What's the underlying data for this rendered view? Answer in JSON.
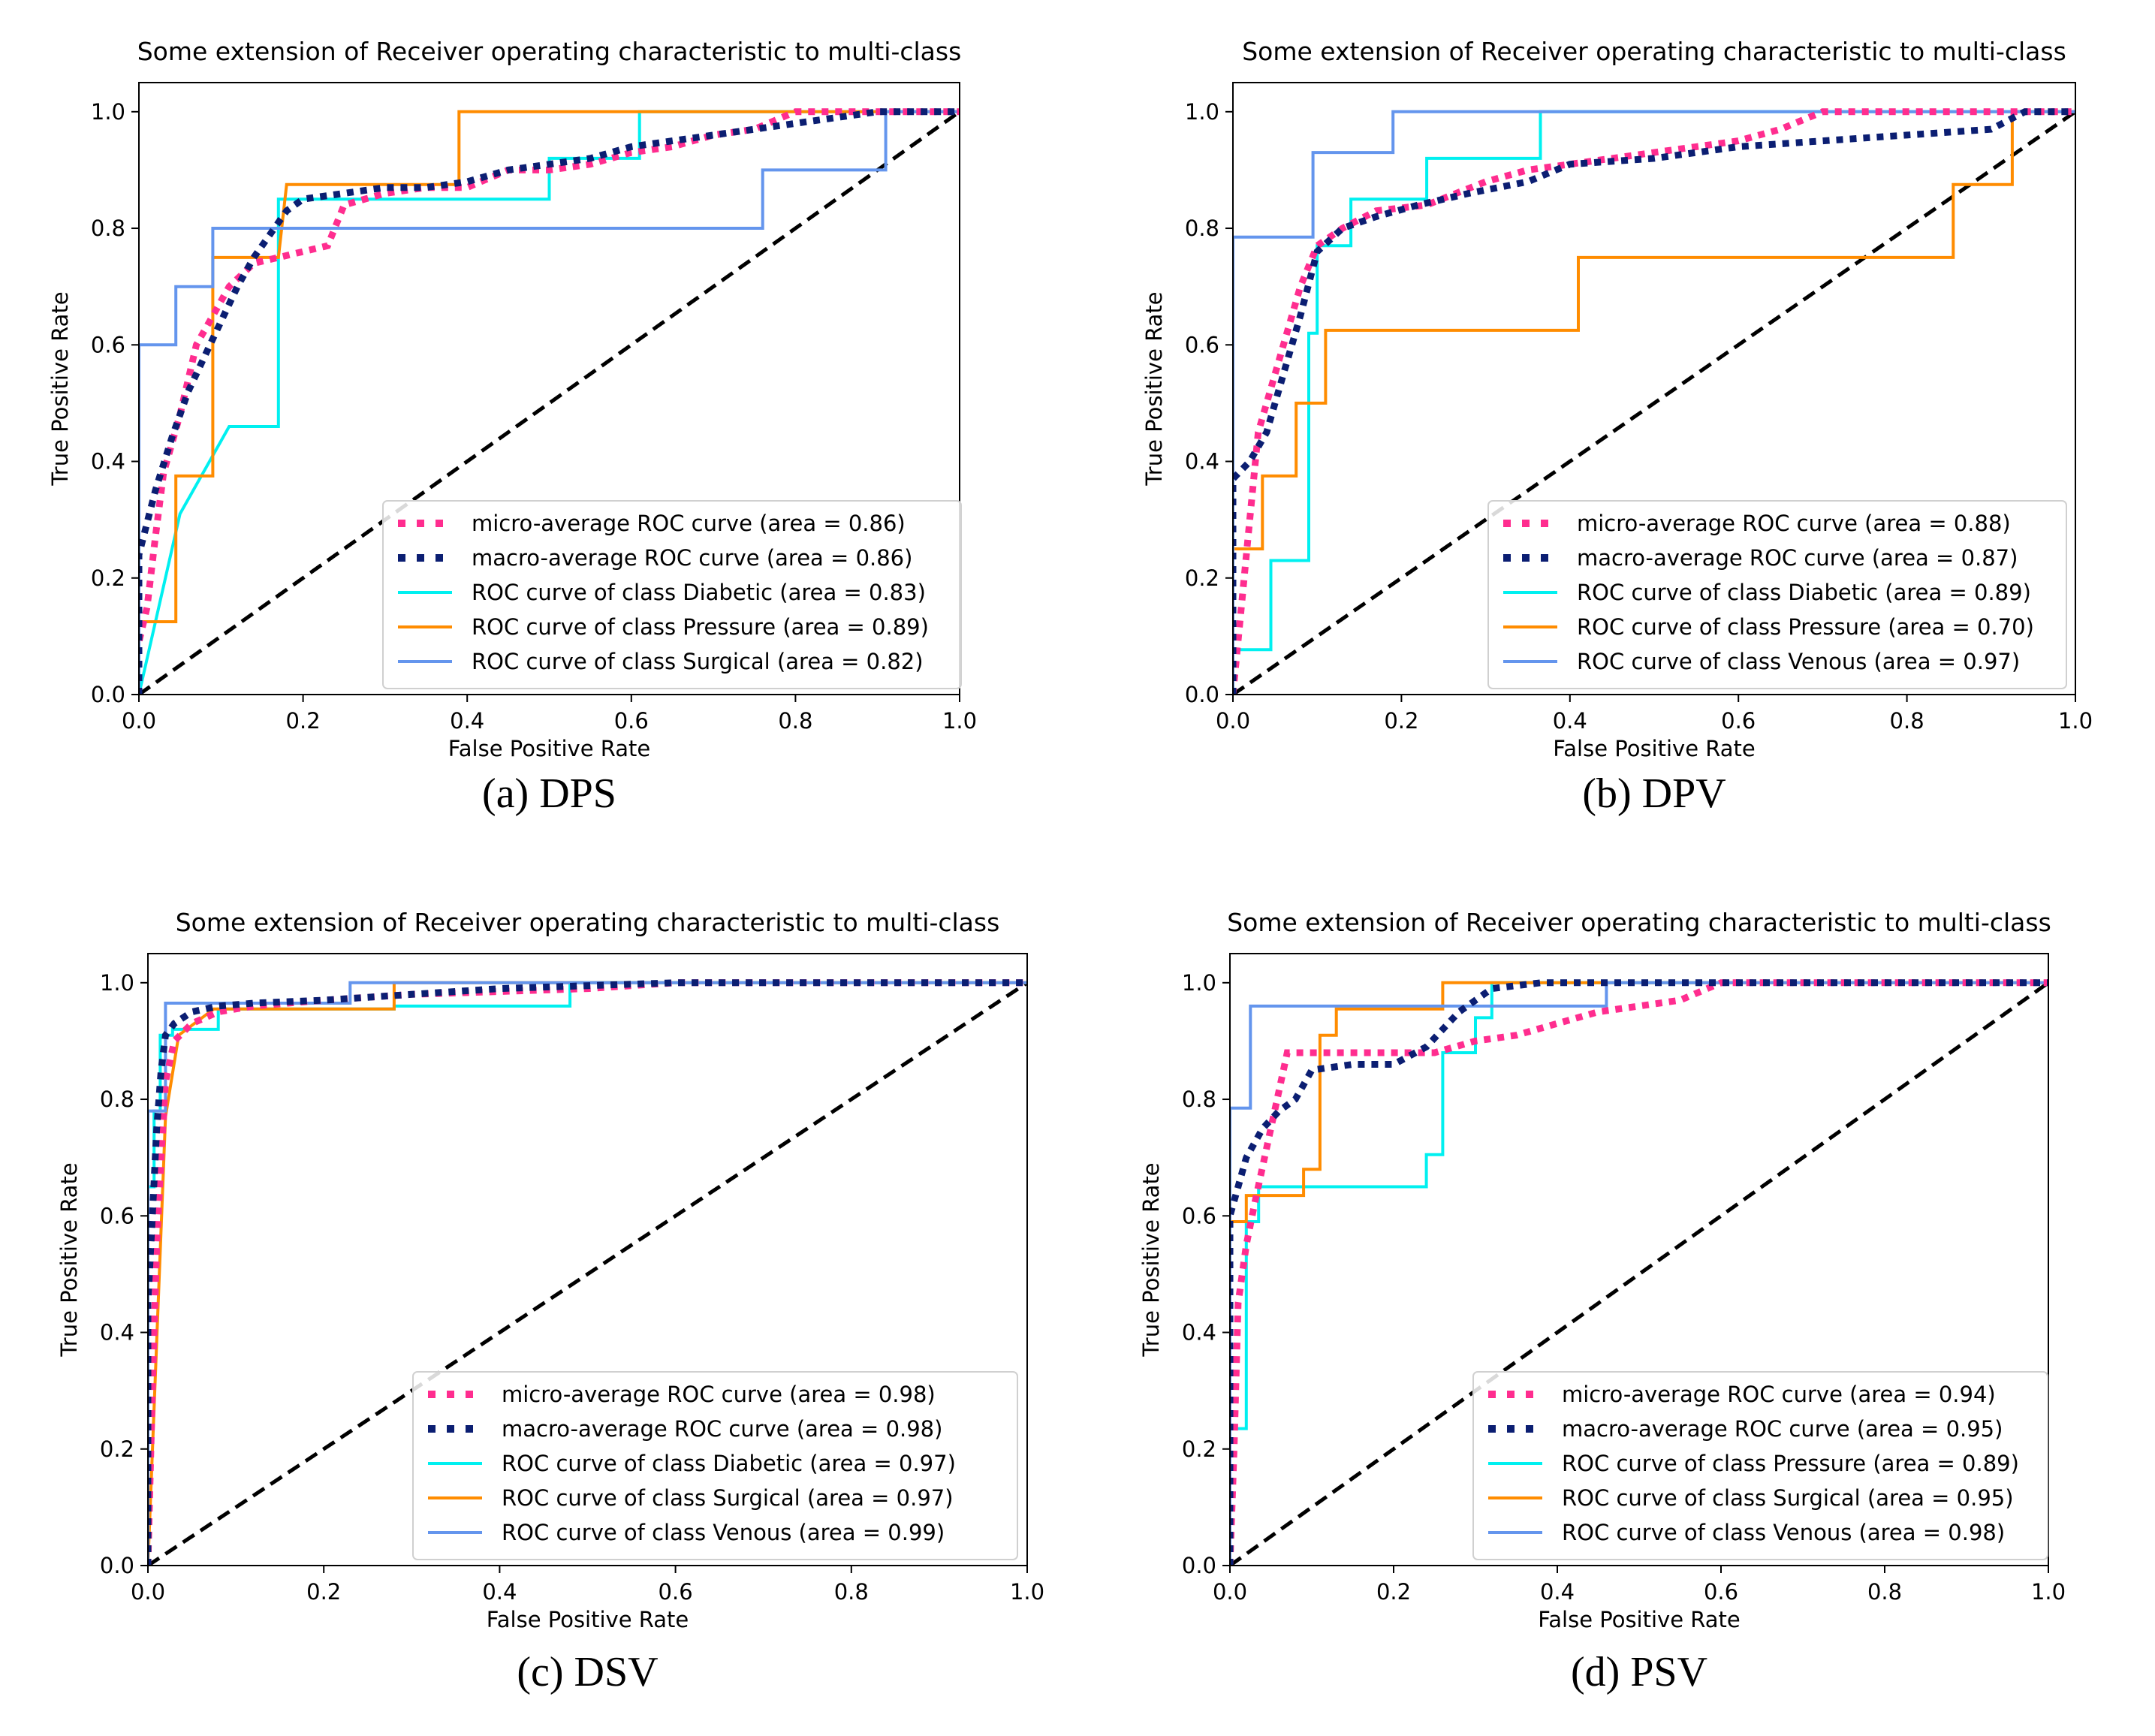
{
  "chart_data": [
    {
      "type": "line",
      "caption": "(a) DPS",
      "title": "Some extension of Receiver operating characteristic to multi-class",
      "xlabel": "False Positive Rate",
      "ylabel": "True Positive Rate",
      "xlim": [
        0,
        1
      ],
      "ylim": [
        0,
        1.05
      ],
      "xticks": [
        "0.0",
        "0.2",
        "0.4",
        "0.6",
        "0.8",
        "1.0"
      ],
      "yticks": [
        "0.0",
        "0.2",
        "0.4",
        "0.6",
        "0.8",
        "1.0"
      ],
      "legend_position": "lower-right",
      "series": [
        {
          "name": "micro-average ROC curve (area = 0.86)",
          "color": "#ff2d8f",
          "style": "dotted",
          "x": [
            0,
            0,
            0.01,
            0.02,
            0.03,
            0.05,
            0.07,
            0.09,
            0.11,
            0.14,
            0.17,
            0.2,
            0.23,
            0.25,
            0.3,
            0.35,
            0.4,
            0.45,
            0.5,
            0.55,
            0.6,
            0.65,
            0.7,
            0.75,
            0.8,
            0.9,
            1.0
          ],
          "y": [
            0,
            0.09,
            0.15,
            0.27,
            0.38,
            0.48,
            0.6,
            0.65,
            0.7,
            0.74,
            0.75,
            0.76,
            0.77,
            0.84,
            0.86,
            0.87,
            0.87,
            0.9,
            0.9,
            0.91,
            0.93,
            0.94,
            0.96,
            0.97,
            1.0,
            1.0,
            1.0
          ]
        },
        {
          "name": "macro-average ROC curve (area = 0.86)",
          "color": "#0b1e72",
          "style": "dotted",
          "x": [
            0,
            0,
            0.02,
            0.04,
            0.06,
            0.08,
            0.1,
            0.12,
            0.14,
            0.16,
            0.18,
            0.2,
            0.25,
            0.3,
            0.35,
            0.4,
            0.45,
            0.5,
            0.55,
            0.6,
            0.65,
            0.7,
            0.75,
            0.8,
            0.85,
            0.9,
            0.95,
            1.0
          ],
          "y": [
            0,
            0.24,
            0.35,
            0.44,
            0.52,
            0.58,
            0.64,
            0.7,
            0.75,
            0.79,
            0.83,
            0.85,
            0.86,
            0.87,
            0.87,
            0.88,
            0.9,
            0.91,
            0.92,
            0.94,
            0.95,
            0.96,
            0.97,
            0.98,
            0.99,
            1.0,
            1.0,
            1.0
          ]
        },
        {
          "name": "ROC curve of class Diabetic (area = 0.83)",
          "color": "#00f0f0",
          "style": "solid",
          "x": [
            0,
            0.05,
            0.11,
            0.17,
            0.17,
            0.5,
            0.5,
            0.61,
            0.61,
            1.0
          ],
          "y": [
            0,
            0.31,
            0.46,
            0.46,
            0.85,
            0.85,
            0.92,
            0.92,
            1.0,
            1.0
          ]
        },
        {
          "name": "ROC curve of class Pressure (area = 0.89)",
          "color": "#ff8c00",
          "style": "solid",
          "x": [
            0,
            0,
            0.045,
            0.045,
            0.09,
            0.09,
            0.09,
            0.17,
            0.18,
            0.39,
            0.39,
            1.0
          ],
          "y": [
            0,
            0.125,
            0.125,
            0.375,
            0.375,
            0.75,
            0.75,
            0.75,
            0.875,
            0.875,
            1.0,
            1.0
          ]
        },
        {
          "name": "ROC curve of class Surgical (area = 0.82)",
          "color": "#6495ed",
          "style": "solid",
          "x": [
            0,
            0,
            0.045,
            0.045,
            0.09,
            0.09,
            0.76,
            0.76,
            0.91,
            0.91,
            1.0
          ],
          "y": [
            0,
            0.6,
            0.6,
            0.7,
            0.7,
            0.8,
            0.8,
            0.9,
            0.9,
            1.0,
            1.0
          ]
        }
      ]
    },
    {
      "type": "line",
      "caption": "(b) DPV",
      "title": "Some extension of Receiver operating characteristic to multi-class",
      "xlabel": "False Positive Rate",
      "ylabel": "True Positive Rate",
      "xlim": [
        0,
        1
      ],
      "ylim": [
        0,
        1.05
      ],
      "xticks": [
        "0.0",
        "0.2",
        "0.4",
        "0.6",
        "0.8",
        "1.0"
      ],
      "yticks": [
        "0.0",
        "0.2",
        "0.4",
        "0.6",
        "0.8",
        "1.0"
      ],
      "legend_position": "lower-right",
      "series": [
        {
          "name": "micro-average ROC curve (area = 0.88)",
          "color": "#ff2d8f",
          "style": "dotted",
          "x": [
            0,
            0.01,
            0.02,
            0.03,
            0.04,
            0.05,
            0.06,
            0.08,
            0.1,
            0.13,
            0.17,
            0.23,
            0.3,
            0.35,
            0.4,
            0.45,
            0.5,
            0.55,
            0.6,
            0.65,
            0.7,
            0.8,
            0.9,
            1.0
          ],
          "y": [
            0,
            0.15,
            0.3,
            0.45,
            0.5,
            0.55,
            0.6,
            0.7,
            0.77,
            0.8,
            0.83,
            0.84,
            0.88,
            0.9,
            0.91,
            0.92,
            0.93,
            0.94,
            0.95,
            0.97,
            1.0,
            1.0,
            1.0,
            1.0
          ]
        },
        {
          "name": "macro-average ROC curve (area = 0.87)",
          "color": "#0b1e72",
          "style": "dotted",
          "x": [
            0,
            0,
            0.02,
            0.04,
            0.06,
            0.08,
            0.1,
            0.13,
            0.17,
            0.22,
            0.28,
            0.35,
            0.4,
            0.5,
            0.6,
            0.7,
            0.8,
            0.9,
            0.94,
            1.0
          ],
          "y": [
            0,
            0.37,
            0.4,
            0.45,
            0.55,
            0.65,
            0.76,
            0.8,
            0.82,
            0.84,
            0.86,
            0.88,
            0.91,
            0.92,
            0.94,
            0.95,
            0.96,
            0.97,
            1.0,
            1.0
          ]
        },
        {
          "name": "ROC curve of class Diabetic (area = 0.89)",
          "color": "#00f0f0",
          "style": "solid",
          "x": [
            0,
            0,
            0.045,
            0.045,
            0.09,
            0.09,
            0.1,
            0.1,
            0.14,
            0.14,
            0.23,
            0.23,
            0.365,
            0.365,
            1.0
          ],
          "y": [
            0,
            0.077,
            0.077,
            0.23,
            0.23,
            0.62,
            0.62,
            0.77,
            0.77,
            0.85,
            0.85,
            0.92,
            0.92,
            1.0,
            1.0
          ]
        },
        {
          "name": "ROC curve of class Pressure (area = 0.70)",
          "color": "#ff8c00",
          "style": "solid",
          "x": [
            0,
            0,
            0.035,
            0.035,
            0.075,
            0.075,
            0.11,
            0.11,
            0.41,
            0.41,
            0.855,
            0.855,
            0.925,
            0.925,
            1.0
          ],
          "y": [
            0,
            0.25,
            0.25,
            0.375,
            0.375,
            0.5,
            0.5,
            0.625,
            0.625,
            0.75,
            0.75,
            0.875,
            0.875,
            1.0,
            1.0
          ]
        },
        {
          "name": "ROC curve of class Venous (area = 0.97)",
          "color": "#6495ed",
          "style": "solid",
          "x": [
            0,
            0,
            0.095,
            0.095,
            0.19,
            0.19,
            1.0
          ],
          "y": [
            0,
            0.785,
            0.785,
            0.93,
            0.93,
            1.0,
            1.0
          ]
        }
      ]
    },
    {
      "type": "line",
      "caption": "(c) DSV",
      "title": "Some extension of Receiver operating characteristic to multi-class",
      "xlabel": "False Positive Rate",
      "ylabel": "True Positive Rate",
      "xlim": [
        0,
        1
      ],
      "ylim": [
        0,
        1.05
      ],
      "xticks": [
        "0.0",
        "0.2",
        "0.4",
        "0.6",
        "0.8",
        "1.0"
      ],
      "yticks": [
        "0.0",
        "0.2",
        "0.4",
        "0.6",
        "0.8",
        "1.0"
      ],
      "legend_position": "lower-right",
      "series": [
        {
          "name": "micro-average ROC curve (area = 0.98)",
          "color": "#ff2d8f",
          "style": "dotted",
          "x": [
            0,
            0.005,
            0.01,
            0.015,
            0.02,
            0.03,
            0.05,
            0.08,
            0.12,
            0.2,
            0.3,
            0.4,
            0.5,
            0.6,
            0.7,
            0.8,
            0.9,
            1.0
          ],
          "y": [
            0,
            0.3,
            0.55,
            0.7,
            0.83,
            0.9,
            0.93,
            0.95,
            0.96,
            0.97,
            0.98,
            0.985,
            0.99,
            1.0,
            1.0,
            1.0,
            1.0,
            1.0
          ]
        },
        {
          "name": "macro-average ROC curve (area = 0.98)",
          "color": "#0b1e72",
          "style": "dotted",
          "x": [
            0,
            0,
            0.005,
            0.01,
            0.015,
            0.02,
            0.03,
            0.05,
            0.08,
            0.12,
            0.2,
            0.3,
            0.4,
            0.5,
            0.6,
            0.8,
            1.0
          ],
          "y": [
            0,
            0.45,
            0.6,
            0.75,
            0.85,
            0.91,
            0.93,
            0.95,
            0.96,
            0.965,
            0.97,
            0.98,
            0.99,
            0.995,
            1.0,
            1.0,
            1.0
          ]
        },
        {
          "name": "ROC curve of class Diabetic (area = 0.97)",
          "color": "#00f0f0",
          "style": "solid",
          "x": [
            0,
            0,
            0.007,
            0.007,
            0.014,
            0.014,
            0.028,
            0.028,
            0.08,
            0.08,
            0.28,
            0.28,
            0.48,
            0.48,
            1.0
          ],
          "y": [
            0,
            0.65,
            0.65,
            0.78,
            0.78,
            0.91,
            0.91,
            0.92,
            0.92,
            0.955,
            0.955,
            0.96,
            0.96,
            1.0,
            1.0
          ]
        },
        {
          "name": "ROC curve of class Surgical (area = 0.97)",
          "color": "#ff8c00",
          "style": "solid",
          "x": [
            0,
            0.02,
            0.02,
            0.035,
            0.035,
            0.075,
            0.075,
            0.28,
            0.28,
            1.0
          ],
          "y": [
            0,
            0.77,
            0.77,
            0.91,
            0.91,
            0.955,
            0.955,
            0.955,
            1.0,
            1.0
          ]
        },
        {
          "name": "ROC curve of class Venous (area = 0.99)",
          "color": "#6495ed",
          "style": "solid",
          "x": [
            0,
            0,
            0.02,
            0.02,
            0.23,
            0.23,
            1.0
          ],
          "y": [
            0,
            0.78,
            0.78,
            0.965,
            0.965,
            1.0,
            1.0
          ]
        }
      ]
    },
    {
      "type": "line",
      "caption": "(d) PSV",
      "title": "Some extension of Receiver operating characteristic to multi-class",
      "xlabel": "False Positive Rate",
      "ylabel": "True Positive Rate",
      "xlim": [
        0,
        1
      ],
      "ylim": [
        0,
        1.05
      ],
      "xticks": [
        "0.0",
        "0.2",
        "0.4",
        "0.6",
        "0.8",
        "1.0"
      ],
      "yticks": [
        "0.0",
        "0.2",
        "0.4",
        "0.6",
        "0.8",
        "1.0"
      ],
      "legend_position": "lower-right",
      "series": [
        {
          "name": "micro-average ROC curve (area = 0.94)",
          "color": "#ff2d8f",
          "style": "dotted",
          "x": [
            0,
            0.005,
            0.01,
            0.02,
            0.03,
            0.05,
            0.07,
            0.1,
            0.15,
            0.2,
            0.25,
            0.3,
            0.35,
            0.4,
            0.45,
            0.5,
            0.55,
            0.6,
            0.7,
            0.8,
            1.0
          ],
          "y": [
            0,
            0.2,
            0.45,
            0.55,
            0.62,
            0.75,
            0.88,
            0.88,
            0.88,
            0.88,
            0.88,
            0.9,
            0.91,
            0.93,
            0.95,
            0.96,
            0.97,
            1.0,
            1.0,
            1.0,
            1.0
          ]
        },
        {
          "name": "macro-average ROC curve (area = 0.95)",
          "color": "#0b1e72",
          "style": "dotted",
          "x": [
            0,
            0,
            0.02,
            0.04,
            0.06,
            0.08,
            0.1,
            0.15,
            0.2,
            0.24,
            0.28,
            0.32,
            0.38,
            0.45,
            0.55,
            0.7,
            0.85,
            1.0
          ],
          "y": [
            0,
            0.6,
            0.7,
            0.75,
            0.78,
            0.8,
            0.85,
            0.86,
            0.86,
            0.89,
            0.95,
            0.99,
            1.0,
            1.0,
            1.0,
            1.0,
            1.0,
            1.0
          ]
        },
        {
          "name": "ROC curve of class Pressure (area = 0.89)",
          "color": "#00f0f0",
          "style": "solid",
          "x": [
            0,
            0,
            0.02,
            0.02,
            0.035,
            0.035,
            0.24,
            0.24,
            0.26,
            0.26,
            0.3,
            0.3,
            0.32,
            0.32,
            1.0
          ],
          "y": [
            0,
            0.235,
            0.235,
            0.59,
            0.59,
            0.65,
            0.65,
            0.705,
            0.705,
            0.88,
            0.88,
            0.94,
            0.94,
            1.0,
            1.0
          ]
        },
        {
          "name": "ROC curve of class Surgical (area = 0.95)",
          "color": "#ff8c00",
          "style": "solid",
          "x": [
            0,
            0,
            0.02,
            0.02,
            0.09,
            0.09,
            0.11,
            0.11,
            0.13,
            0.13,
            0.26,
            0.26,
            1.0
          ],
          "y": [
            0,
            0.59,
            0.59,
            0.635,
            0.635,
            0.68,
            0.68,
            0.91,
            0.91,
            0.955,
            0.955,
            1.0,
            1.0
          ]
        },
        {
          "name": "ROC curve of class Venous (area = 0.98)",
          "color": "#6495ed",
          "style": "solid",
          "x": [
            0,
            0,
            0.025,
            0.025,
            0.46,
            0.46,
            1.0
          ],
          "y": [
            0,
            0.785,
            0.785,
            0.96,
            0.96,
            1.0,
            1.0
          ]
        }
      ]
    }
  ]
}
